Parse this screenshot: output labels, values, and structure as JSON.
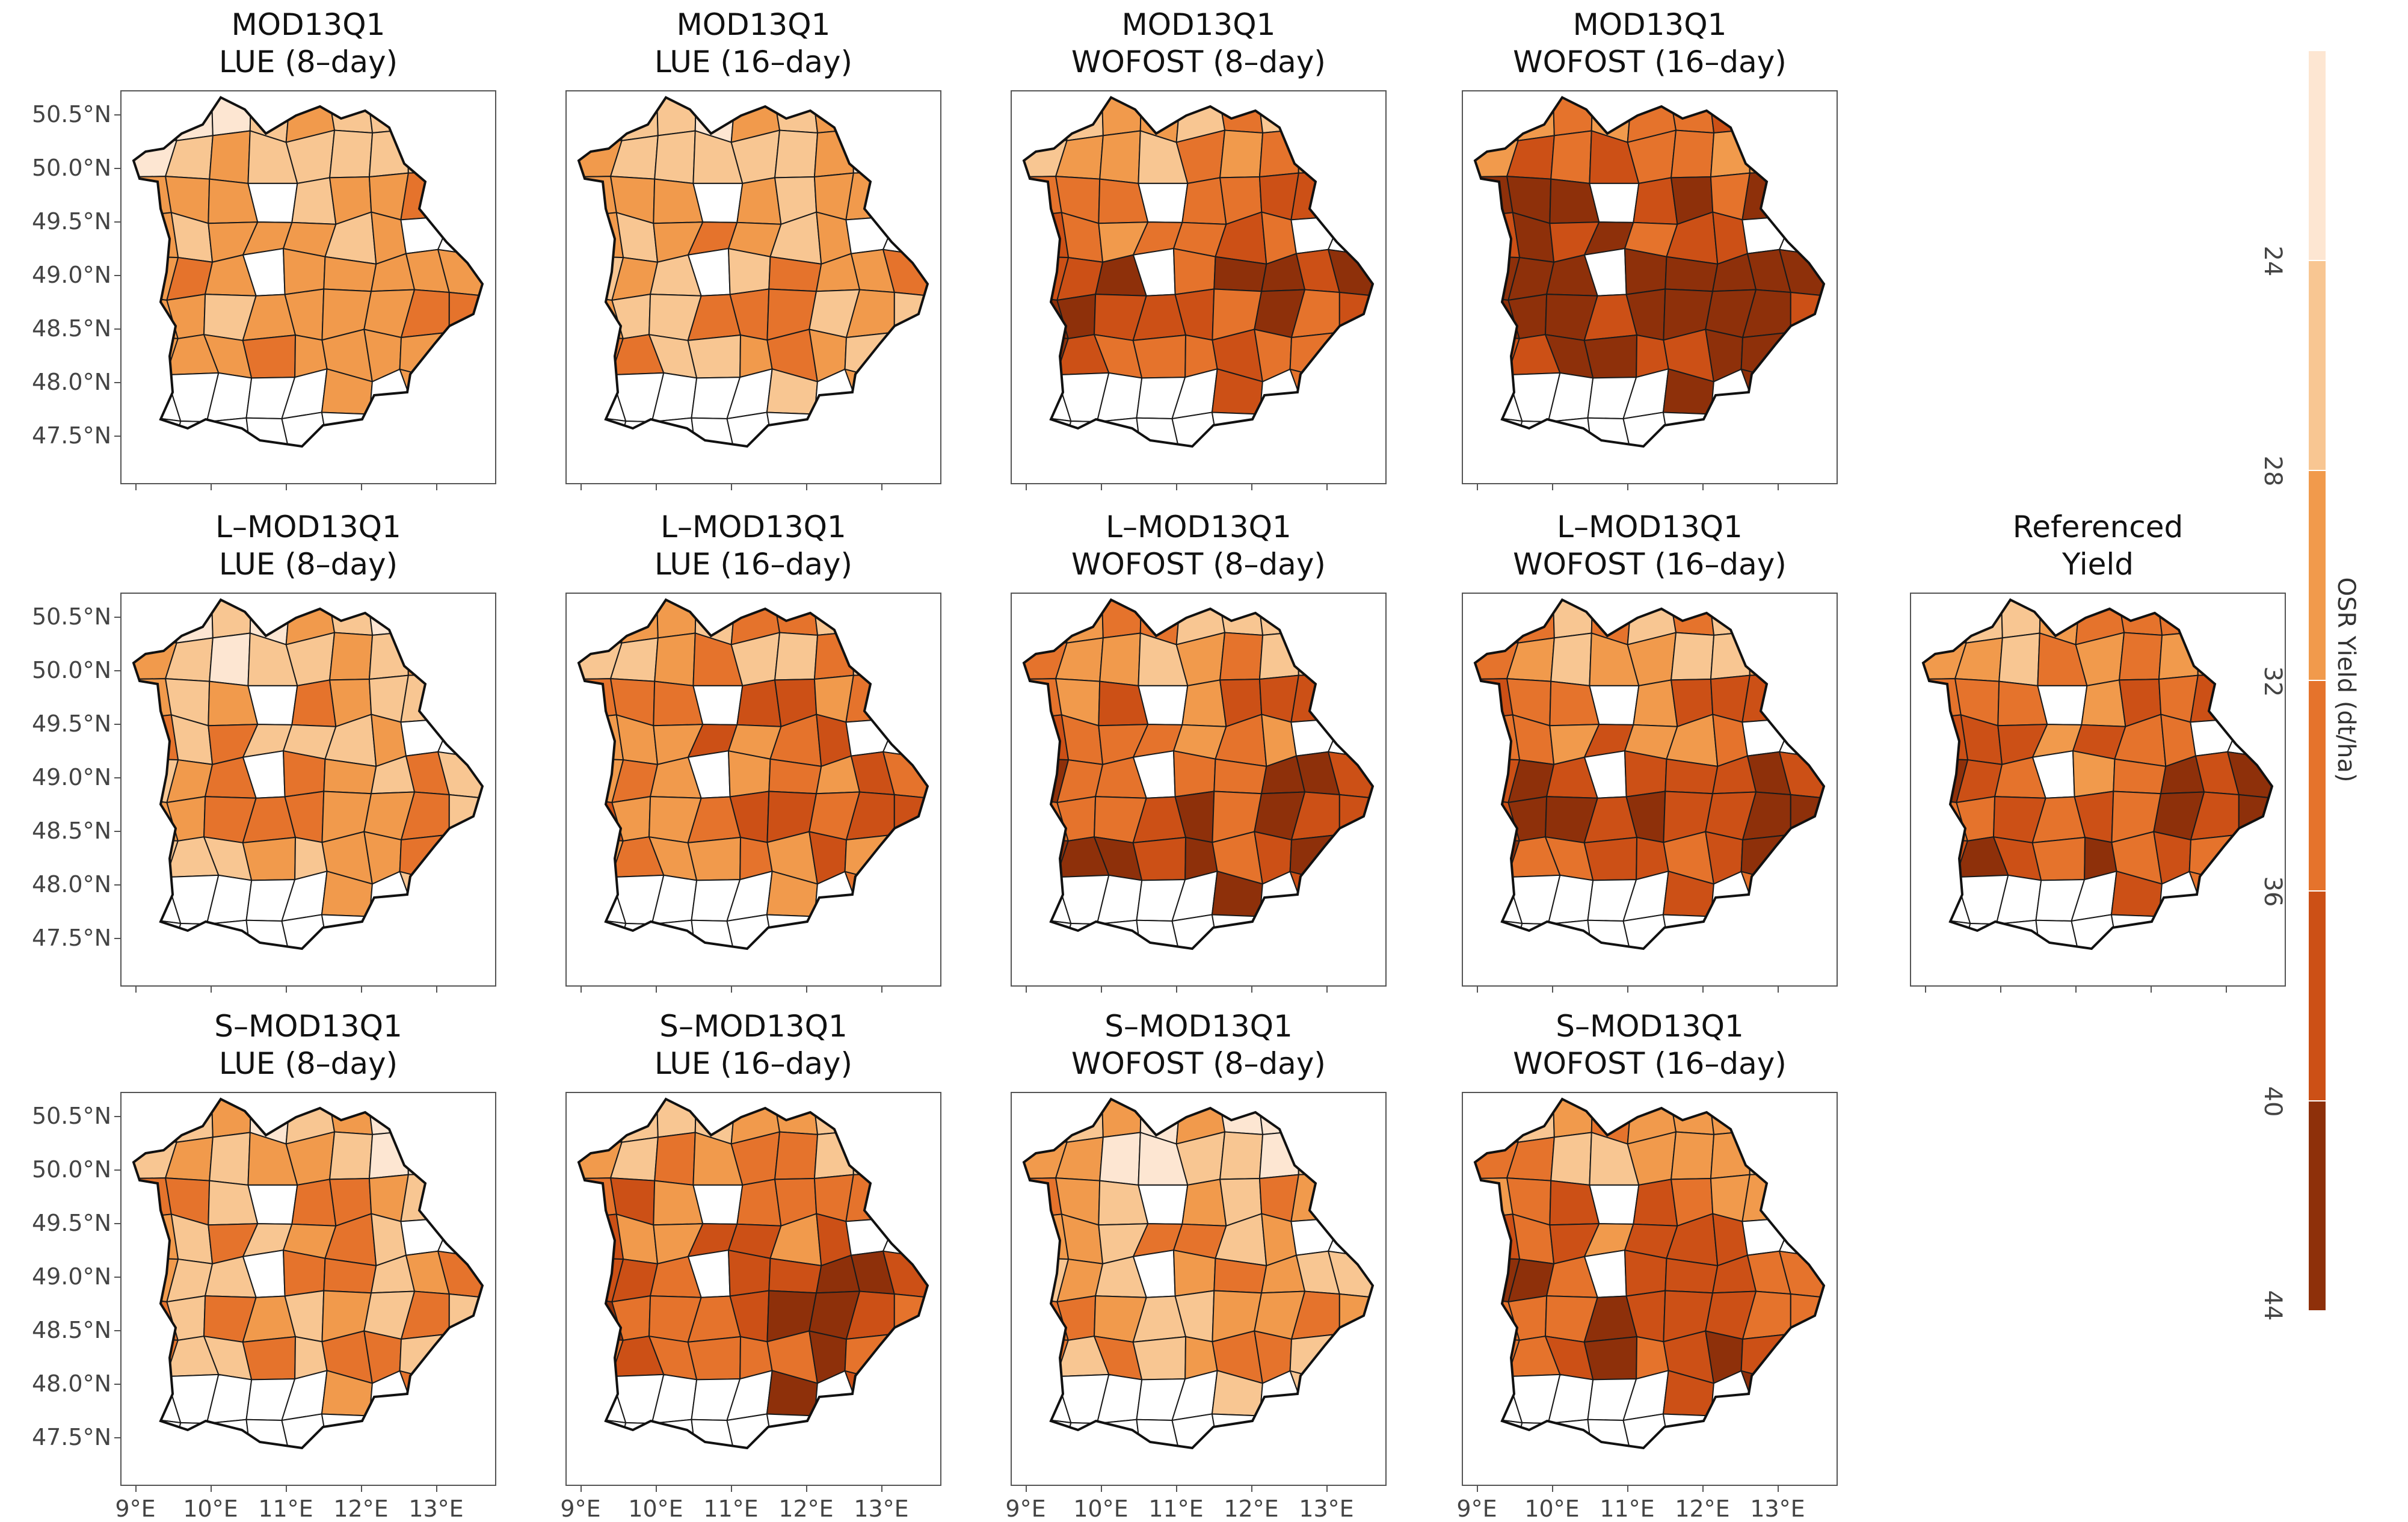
{
  "figure": {
    "colorbar": {
      "title": "OSR Yield (dt/ha)",
      "ticks": [
        "24",
        "28",
        "32",
        "36",
        "40",
        "44"
      ],
      "bins": [
        "#fde6d2",
        "#f8c692",
        "#f19a4c",
        "#e5732c",
        "#cc5016",
        "#8e300a"
      ]
    },
    "lat_labels": [
      "50.5°N",
      "50.0°N",
      "49.5°N",
      "49.0°N",
      "48.5°N",
      "48.0°N",
      "47.5°N"
    ],
    "lon_labels": [
      "9°E",
      "10°E",
      "11°E",
      "12°E",
      "13°E"
    ],
    "panels": [
      {
        "row": 0,
        "col": 0,
        "title_line1": "MOD13Q1",
        "title_line2": "LUE (8–day)",
        "mean_level": 2,
        "spread": 1,
        "south_bias": 1
      },
      {
        "row": 0,
        "col": 1,
        "title_line1": "MOD13Q1",
        "title_line2": "LUE (16–day)",
        "mean_level": 2,
        "spread": 2,
        "south_bias": 1
      },
      {
        "row": 0,
        "col": 2,
        "title_line1": "MOD13Q1",
        "title_line2": "WOFOST (8–day)",
        "mean_level": 3,
        "spread": 2,
        "south_bias": 2
      },
      {
        "row": 0,
        "col": 3,
        "title_line1": "MOD13Q1",
        "title_line2": "WOFOST (16–day)",
        "mean_level": 4,
        "spread": 2,
        "south_bias": 2
      },
      {
        "row": 1,
        "col": 0,
        "title_line1": "L–MOD13Q1",
        "title_line2": "LUE (8–day)",
        "mean_level": 2,
        "spread": 2,
        "south_bias": 1
      },
      {
        "row": 1,
        "col": 1,
        "title_line1": "L–MOD13Q1",
        "title_line2": "LUE (16–day)",
        "mean_level": 3,
        "spread": 2,
        "south_bias": 1
      },
      {
        "row": 1,
        "col": 2,
        "title_line1": "L–MOD13Q1",
        "title_line2": "WOFOST (8–day)",
        "mean_level": 3,
        "spread": 2,
        "south_bias": 2
      },
      {
        "row": 1,
        "col": 3,
        "title_line1": "L–MOD13Q1",
        "title_line2": "WOFOST (16–day)",
        "mean_level": 3,
        "spread": 2,
        "south_bias": 2
      },
      {
        "row": 1,
        "col": 4,
        "title_line1": "Referenced",
        "title_line2": "Yield",
        "mean_level": 3,
        "spread": 2,
        "south_bias": 2
      },
      {
        "row": 2,
        "col": 0,
        "title_line1": "S–MOD13Q1",
        "title_line2": "LUE (8–day)",
        "mean_level": 2,
        "spread": 2,
        "south_bias": 1
      },
      {
        "row": 2,
        "col": 1,
        "title_line1": "S–MOD13Q1",
        "title_line2": "LUE (16–day)",
        "mean_level": 3,
        "spread": 2,
        "south_bias": 2
      },
      {
        "row": 2,
        "col": 2,
        "title_line1": "S–MOD13Q1",
        "title_line2": "WOFOST (8–day)",
        "mean_level": 2,
        "spread": 2,
        "south_bias": 1
      },
      {
        "row": 2,
        "col": 3,
        "title_line1": "S–MOD13Q1",
        "title_line2": "WOFOST (16–day)",
        "mean_level": 3,
        "spread": 2,
        "south_bias": 2
      }
    ]
  }
}
